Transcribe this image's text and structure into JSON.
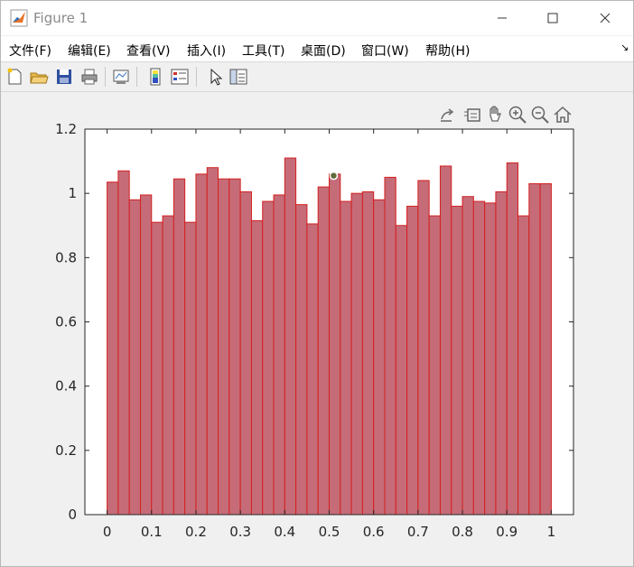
{
  "window": {
    "title": "Figure 1"
  },
  "menu": [
    {
      "label": "文件(F)"
    },
    {
      "label": "编辑(E)"
    },
    {
      "label": "查看(V)"
    },
    {
      "label": "插入(I)"
    },
    {
      "label": "工具(T)"
    },
    {
      "label": "桌面(D)"
    },
    {
      "label": "窗口(W)"
    },
    {
      "label": "帮助(H)"
    }
  ],
  "toolbar": [
    "new-figure-icon",
    "open-folder-icon",
    "save-icon",
    "print-icon",
    "link-plot-icon",
    "colorbar-icon",
    "legend-icon",
    "edit-plot-arrow-icon",
    "property-inspector-icon"
  ],
  "axes_toolbar": [
    "export-icon",
    "brush-icon",
    "pan-hand-icon",
    "zoom-in-icon",
    "zoom-out-icon",
    "home-icon"
  ],
  "colors": {
    "bar_fill": "#c56c78",
    "bar_edge": "#d42020",
    "axes_bg": "#ffffff",
    "figure_bg": "#f0f0f0"
  },
  "chart_data": {
    "type": "bar",
    "title": "",
    "xlabel": "",
    "ylabel": "",
    "xlim": [
      -0.05,
      1.05
    ],
    "ylim": [
      0,
      1.2
    ],
    "bin_width": 0.025,
    "x_start": 0,
    "values": [
      1.035,
      1.07,
      0.98,
      0.995,
      0.91,
      0.93,
      1.045,
      0.91,
      1.06,
      1.08,
      1.045,
      1.045,
      1.005,
      0.915,
      0.975,
      0.995,
      1.11,
      0.965,
      0.905,
      1.02,
      1.06,
      0.975,
      1.0,
      1.005,
      0.98,
      1.05,
      0.9,
      0.96,
      1.04,
      0.93,
      1.085,
      0.96,
      0.99,
      0.975,
      0.97,
      1.005,
      1.095,
      0.93,
      1.03,
      1.03
    ],
    "xticks": [
      0,
      0.1,
      0.2,
      0.3,
      0.4,
      0.5,
      0.6,
      0.7,
      0.8,
      0.9,
      1
    ],
    "xtick_labels": [
      "0",
      "0.1",
      "0.2",
      "0.3",
      "0.4",
      "0.5",
      "0.6",
      "0.7",
      "0.8",
      "0.9",
      "1"
    ],
    "yticks": [
      0,
      0.2,
      0.4,
      0.6,
      0.8,
      1,
      1.2
    ],
    "ytick_labels": [
      "0",
      "0.2",
      "0.4",
      "0.6",
      "0.8",
      "1",
      "1.2"
    ],
    "marker_point": {
      "x": 0.51,
      "y": 1.055
    },
    "grid": false
  }
}
